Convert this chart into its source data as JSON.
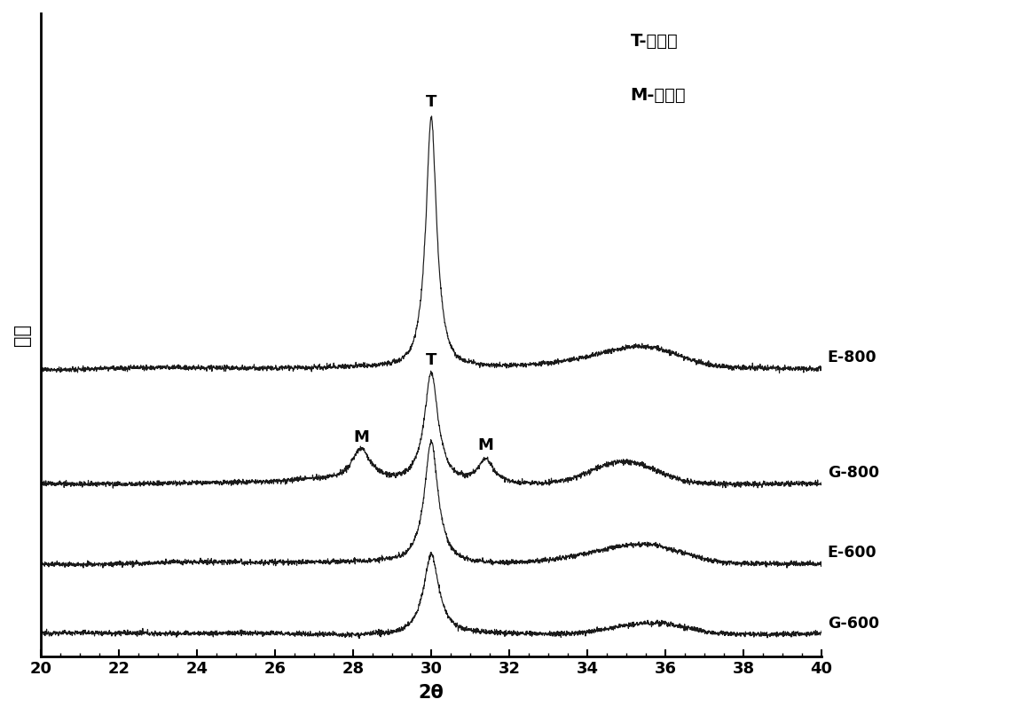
{
  "xlim": [
    20,
    40
  ],
  "xlabel": "2θ",
  "ylabel": "强度",
  "x_ticks": [
    20,
    22,
    24,
    26,
    28,
    30,
    32,
    34,
    36,
    38,
    40
  ],
  "series_labels": [
    "G-600",
    "E-600",
    "G-800",
    "E-800"
  ],
  "offsets": [
    0,
    1.6,
    3.4,
    6.0
  ],
  "legend_text": [
    "T-四方相",
    "M-单斜相"
  ],
  "bg_color": "#ffffff",
  "line_color": "#1a1a1a",
  "noise_level": 0.028
}
